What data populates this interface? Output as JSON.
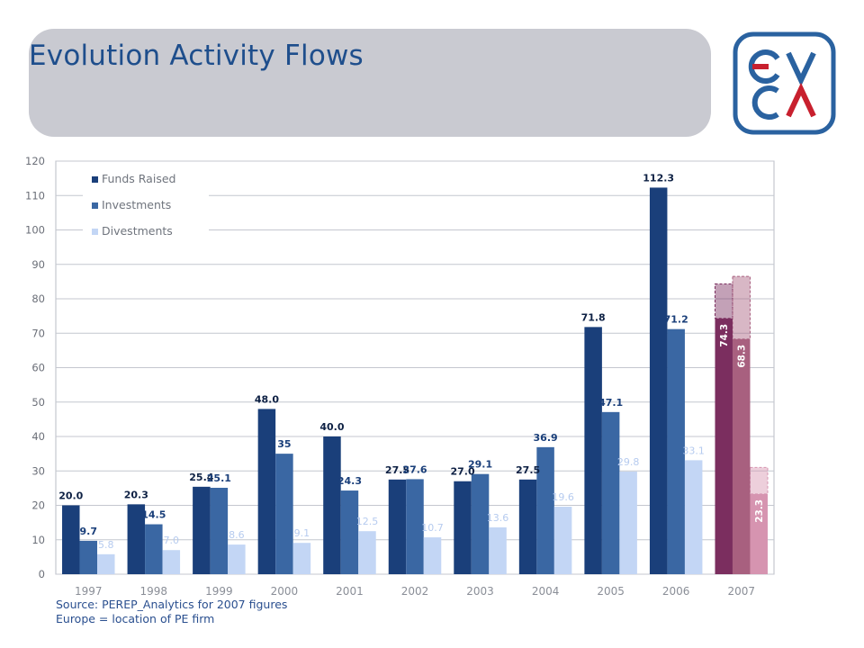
{
  "slide": {
    "title": "Evolution Activity Flows",
    "source_line1": "Source: PEREP_Analytics  for 2007 figures",
    "source_line2": "Europe = location  of PE firm",
    "logo_text": "EVCA"
  },
  "colors": {
    "funds_raised": "#1a3f7a",
    "investments": "#3a67a3",
    "divestments": "#c3d6f5",
    "funds_raised_2007": "#7b2e5f",
    "investments_2007": "#a8607f",
    "divestments_2007": "#d694b0",
    "title": "#1e4e8c",
    "logo_blue": "#2a62a0",
    "logo_red": "#c8202e"
  },
  "chart_data": {
    "type": "bar",
    "categories": [
      "1997",
      "1998",
      "1999",
      "2000",
      "2001",
      "2002",
      "2003",
      "2004",
      "2005",
      "2006",
      "2007"
    ],
    "series": [
      {
        "name": "Funds Raised",
        "values": [
          20.0,
          20.3,
          25.4,
          48.0,
          40.0,
          27.5,
          27.0,
          27.5,
          71.8,
          112.3,
          74.3
        ],
        "labels": [
          "20.0",
          "20.3",
          "25.4",
          "48.0",
          "40.0",
          "27.5",
          "27.0",
          "27.5",
          "71.8",
          "112.3",
          "74.3"
        ]
      },
      {
        "name": "Investments",
        "values": [
          9.7,
          14.5,
          25.1,
          35,
          24.3,
          27.6,
          29.1,
          36.9,
          47.1,
          71.2,
          68.3
        ],
        "labels": [
          "9.7",
          "14.5",
          "25.1",
          "35",
          "24.3",
          "27.6",
          "29.1",
          "36.9",
          "47.1",
          "71.2",
          "68.3"
        ]
      },
      {
        "name": "Divestments",
        "values": [
          5.8,
          7.0,
          8.6,
          9.1,
          12.5,
          10.7,
          13.6,
          19.6,
          29.8,
          33.1,
          23.3
        ],
        "labels": [
          "5.8",
          "7.0",
          "8.6",
          "9.1",
          "12.5",
          "10.7",
          "13.6",
          "19.6",
          "29.8",
          "33.1",
          "23.3"
        ]
      }
    ],
    "forecast_2007": [
      84.3,
      86.5,
      31.0
    ],
    "yticks": [
      0,
      10,
      20,
      30,
      40,
      50,
      60,
      70,
      80,
      90,
      100,
      110,
      120
    ],
    "ylim": [
      0,
      120
    ],
    "grid": true,
    "legend_position": "top-left"
  }
}
